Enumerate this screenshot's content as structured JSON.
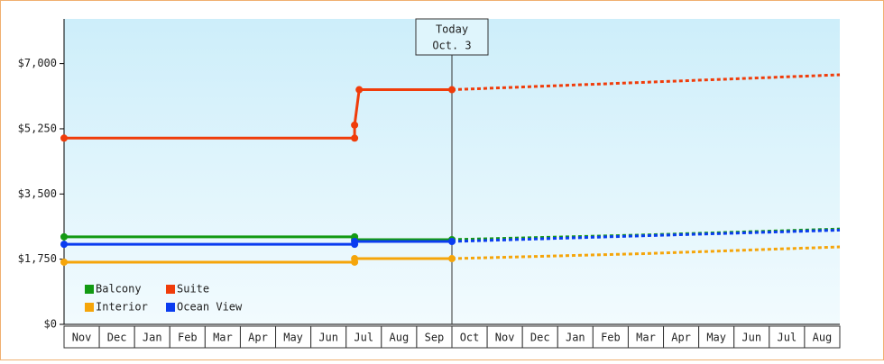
{
  "chart_data": {
    "type": "line",
    "categories": [
      "Nov",
      "Dec",
      "Jan",
      "Feb",
      "Mar",
      "Apr",
      "May",
      "Jun",
      "Jul",
      "Aug",
      "Sep",
      "Oct",
      "Nov",
      "Dec",
      "Jan",
      "Feb",
      "Mar",
      "Apr",
      "May",
      "Jun",
      "Jul",
      "Aug"
    ],
    "xlim": [
      0,
      22
    ],
    "ylim": [
      0,
      8200
    ],
    "yticks": [
      {
        "value": 0,
        "label": "$0"
      },
      {
        "value": 1750,
        "label": "$1,750"
      },
      {
        "value": 3500,
        "label": "$3,500"
      },
      {
        "value": 5250,
        "label": "$5,250"
      },
      {
        "value": 7000,
        "label": "$7,000"
      }
    ],
    "annotation": {
      "lines": [
        "Today",
        "Oct. 3"
      ],
      "x": 11
    },
    "series": [
      {
        "name": "Balcony",
        "color": "#139a13",
        "x": [
          0,
          8.24,
          8.24,
          11
        ],
        "values": [
          2350,
          2350,
          2275,
          2275
        ],
        "forecast_x": [
          11,
          16.5,
          22
        ],
        "forecast_values": [
          2275,
          2400,
          2560
        ]
      },
      {
        "name": "Suite",
        "color": "#f03c0a",
        "x": [
          0,
          8.24,
          8.24,
          8.37,
          11
        ],
        "values": [
          5000,
          5000,
          5350,
          6300,
          6300
        ],
        "forecast_x": [
          11,
          16.5,
          22
        ],
        "forecast_values": [
          6300,
          6500,
          6700
        ]
      },
      {
        "name": "Interior",
        "color": "#f5a50a",
        "x": [
          0,
          8.24,
          8.24,
          11
        ],
        "values": [
          1670,
          1670,
          1765,
          1765
        ],
        "forecast_x": [
          11,
          16.5,
          22
        ],
        "forecast_values": [
          1765,
          1900,
          2080
        ]
      },
      {
        "name": "Ocean View",
        "color": "#0a3cf0",
        "x": [
          0,
          8.24,
          8.24,
          11
        ],
        "values": [
          2150,
          2150,
          2225,
          2225
        ],
        "forecast_x": [
          11,
          16.5,
          22
        ],
        "forecast_values": [
          2225,
          2380,
          2530
        ]
      }
    ]
  }
}
